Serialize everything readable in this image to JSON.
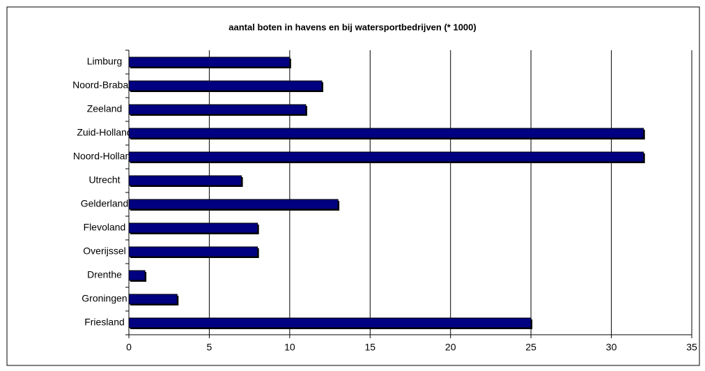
{
  "chart_data": {
    "type": "bar",
    "orientation": "horizontal",
    "title": "aantal boten in havens en bij watersportbedrijven (* 1000)",
    "categories": [
      "Limburg",
      "Noord-Brabant",
      "Zeeland",
      "Zuid-Holland",
      "Noord-Holland",
      "Utrecht",
      "Gelderland",
      "Flevoland",
      "Overijssel",
      "Drenthe",
      "Groningen",
      "Friesland"
    ],
    "values": [
      10,
      12,
      11,
      32,
      32,
      7,
      13,
      8,
      8,
      1,
      3,
      25
    ],
    "color": "#000080",
    "xlim": [
      0,
      35
    ],
    "xticks": [
      0,
      5,
      10,
      15,
      20,
      25,
      30,
      35
    ],
    "grid": true
  }
}
